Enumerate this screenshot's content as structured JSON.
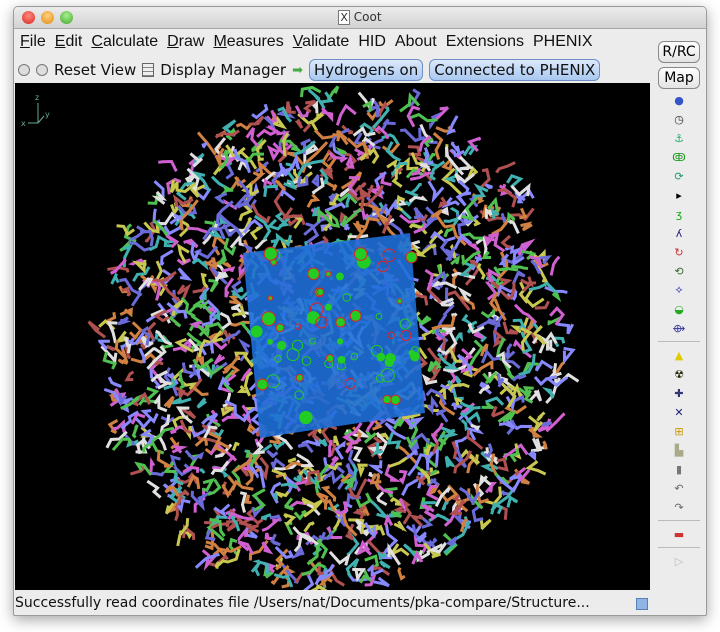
{
  "window": {
    "title": "Coot"
  },
  "menu": [
    "File",
    "Edit",
    "Calculate",
    "Draw",
    "Measures",
    "Validate",
    "HID",
    "About",
    "Extensions",
    "PHENIX"
  ],
  "menu_underlined": [
    true,
    true,
    true,
    true,
    true,
    true,
    false,
    false,
    false,
    false
  ],
  "toolbar": {
    "reset_view": "Reset View",
    "display_manager": "Display Manager",
    "hydrogens": "Hydrogens on",
    "phenix": "Connected to PHENIX"
  },
  "side": {
    "rrc": "R/RC",
    "map": "Map",
    "icons_top": [
      "sphere-icon",
      "clock-icon",
      "anchor-icon",
      "rotamer-icon",
      "flip-icon",
      "triangle-right-icon",
      "refine-icon",
      "regularize-icon",
      "rotate-translate-icon",
      "torsion-icon",
      "mutate-icon",
      "sidechain-icon",
      "chain-icon"
    ],
    "icons_mid": [
      "warning-icon",
      "radiation-icon",
      "add-atom-icon",
      "add-residue-icon",
      "add-terminal-icon",
      "stamp-icon",
      "trash-icon",
      "undo-icon",
      "redo-icon"
    ],
    "icons_bottom": [
      "flag-icon"
    ]
  },
  "axes": {
    "z": "z",
    "x": "x",
    "y": "y"
  },
  "status": "Successfully read coordinates file /Users/nat/Documents/pka-compare/Structure..."
}
